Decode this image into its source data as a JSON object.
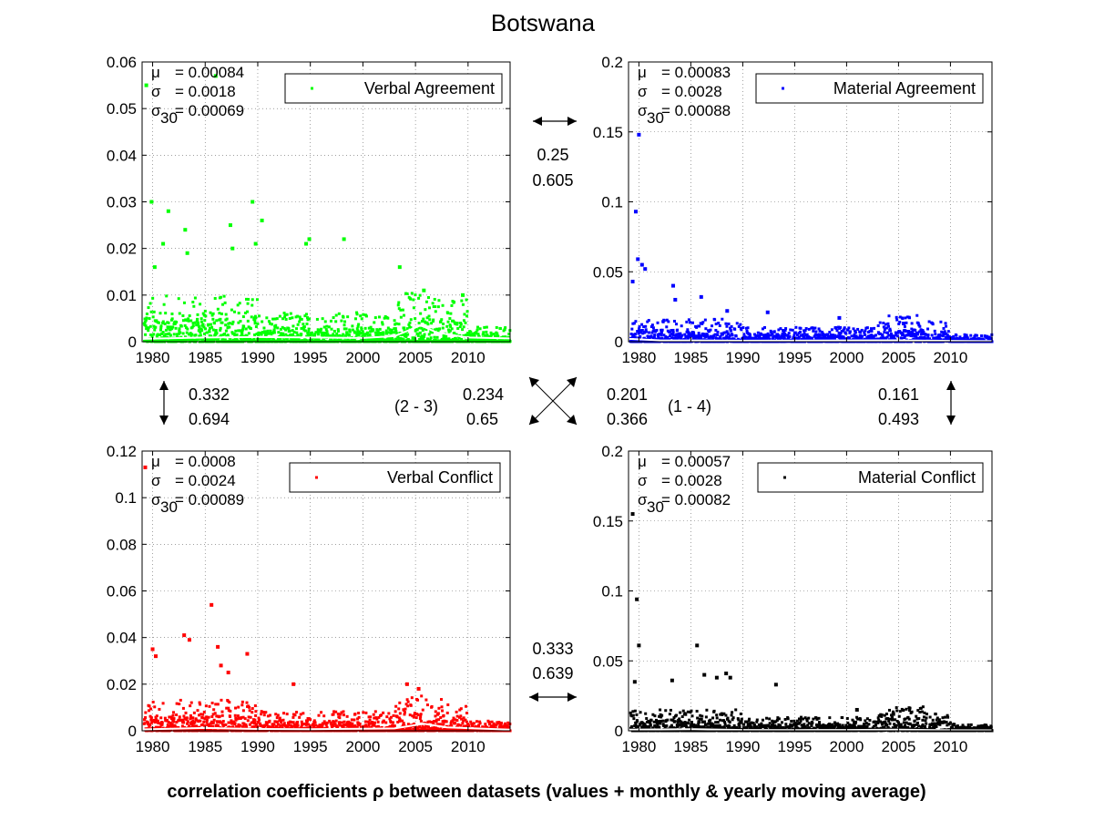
{
  "title": "Botswana",
  "caption": "correlation coefficients ρ between datasets (values + monthly & yearly moving average)",
  "colors": {
    "verbal_agreement": "#00ff00",
    "material_agreement": "#0000ff",
    "verbal_conflict": "#ff0000",
    "material_conflict": "#000000",
    "moving_average": "#ffffff"
  },
  "correlations": {
    "top_horizontal": {
      "values": [
        "0.25",
        "0.605"
      ]
    },
    "left_vertical": {
      "values": [
        "0.332",
        "0.694"
      ]
    },
    "right_vertical": {
      "values": [
        "0.161",
        "0.493"
      ]
    },
    "diag_2_3": {
      "label": "(2 - 3)",
      "values": [
        "0.234",
        "0.65"
      ]
    },
    "diag_1_4": {
      "label": "(1 - 4)",
      "values": [
        "0.201",
        "0.366"
      ]
    },
    "bottom_horizontal": {
      "values": [
        "0.333",
        "0.639"
      ]
    }
  },
  "chart_data": [
    {
      "type": "scatter",
      "name": "Verbal Agreement",
      "color": "#00ff00",
      "stats": {
        "mu": "= 0.00084",
        "sigma": "= 0.0018",
        "sigma30": "= 0.00069"
      },
      "xlim": [
        1979,
        2014
      ],
      "ylim": [
        0,
        0.06
      ],
      "xticks": [
        "1980",
        "1985",
        "1990",
        "1995",
        "2000",
        "2005",
        "2010"
      ],
      "yticks": [
        "0",
        "0.01",
        "0.02",
        "0.03",
        "0.04",
        "0.05",
        "0.06"
      ],
      "grid": true,
      "legend_position": "top-right",
      "typical_max": 0.009,
      "outliers": [
        [
          1979.4,
          0.055
        ],
        [
          1979.9,
          0.03
        ],
        [
          1980.2,
          0.016
        ],
        [
          1981.0,
          0.021
        ],
        [
          1981.5,
          0.028
        ],
        [
          1983.1,
          0.024
        ],
        [
          1983.3,
          0.019
        ],
        [
          1986.0,
          0.057
        ],
        [
          1987.4,
          0.025
        ],
        [
          1987.6,
          0.02
        ],
        [
          1989.5,
          0.03
        ],
        [
          1989.8,
          0.021
        ],
        [
          1990.4,
          0.026
        ],
        [
          1994.6,
          0.021
        ],
        [
          1994.9,
          0.022
        ],
        [
          1998.2,
          0.022
        ],
        [
          2003.5,
          0.016
        ],
        [
          2005.8,
          0.011
        ],
        [
          2009.5,
          0.01
        ]
      ],
      "moving_average": [
        [
          1979,
          0.0006
        ],
        [
          1985,
          0.0009
        ],
        [
          1990,
          0.001
        ],
        [
          1995,
          0.0009
        ],
        [
          2000,
          0.0008
        ],
        [
          2003,
          0.0012
        ],
        [
          2005.5,
          0.0035
        ],
        [
          2007,
          0.002
        ],
        [
          2010,
          0.0009
        ],
        [
          2014,
          0.0007
        ]
      ]
    },
    {
      "type": "scatter",
      "name": "Material Agreement",
      "color": "#0000ff",
      "stats": {
        "mu": "= 0.00083",
        "sigma": "= 0.0028",
        "sigma30": "= 0.00088"
      },
      "xlim": [
        1979,
        2014
      ],
      "ylim": [
        0,
        0.2
      ],
      "xticks": [
        "1980",
        "1985",
        "1990",
        "1995",
        "2000",
        "2005",
        "2010"
      ],
      "yticks": [
        "0",
        "0.05",
        "0.1",
        "0.15",
        "0.2"
      ],
      "grid": true,
      "legend_position": "top-right",
      "typical_max": 0.015,
      "outliers": [
        [
          1979.4,
          0.043
        ],
        [
          1979.7,
          0.093
        ],
        [
          1980.0,
          0.148
        ],
        [
          1979.9,
          0.059
        ],
        [
          1980.3,
          0.055
        ],
        [
          1980.6,
          0.052
        ],
        [
          1983.3,
          0.04
        ],
        [
          1983.5,
          0.03
        ],
        [
          1986.0,
          0.032
        ],
        [
          1988.5,
          0.022
        ],
        [
          1992.4,
          0.021
        ],
        [
          1999.3,
          0.017
        ],
        [
          2005.5,
          0.013
        ]
      ],
      "moving_average": [
        [
          1979,
          0.002
        ],
        [
          1982,
          0.001
        ],
        [
          1990,
          0.0007
        ],
        [
          2000,
          0.0009
        ],
        [
          2005,
          0.001
        ],
        [
          2010,
          0.0006
        ],
        [
          2014,
          0.0004
        ]
      ]
    },
    {
      "type": "scatter",
      "name": "Verbal Conflict",
      "color": "#ff0000",
      "stats": {
        "mu": "= 0.0008",
        "sigma": "= 0.0024",
        "sigma30": "= 0.00089"
      },
      "xlim": [
        1979,
        2014
      ],
      "ylim": [
        0,
        0.12
      ],
      "xticks": [
        "1980",
        "1985",
        "1990",
        "1995",
        "2000",
        "2005",
        "2010"
      ],
      "yticks": [
        "0",
        "0.02",
        "0.04",
        "0.06",
        "0.08",
        "0.1",
        "0.12"
      ],
      "grid": true,
      "legend_position": "top-right",
      "typical_max": 0.012,
      "outliers": [
        [
          1979.3,
          0.113
        ],
        [
          1980.0,
          0.035
        ],
        [
          1980.3,
          0.032
        ],
        [
          1983.0,
          0.041
        ],
        [
          1983.5,
          0.039
        ],
        [
          1985.6,
          0.054
        ],
        [
          1986.2,
          0.036
        ],
        [
          1986.5,
          0.028
        ],
        [
          1987.2,
          0.025
        ],
        [
          1989.0,
          0.033
        ],
        [
          1993.4,
          0.02
        ],
        [
          2004.2,
          0.02
        ],
        [
          2005.3,
          0.018
        ]
      ],
      "moving_average": [
        [
          1979,
          0.0006
        ],
        [
          1985,
          0.0012
        ],
        [
          1990,
          0.0008
        ],
        [
          1995,
          0.0007
        ],
        [
          2000,
          0.0009
        ],
        [
          2003,
          0.001
        ],
        [
          2005.8,
          0.003
        ],
        [
          2008,
          0.0015
        ],
        [
          2014,
          0.0005
        ]
      ]
    },
    {
      "type": "scatter",
      "name": "Material Conflict",
      "color": "#000000",
      "stats": {
        "mu": "= 0.00057",
        "sigma": "= 0.0028",
        "sigma30": "= 0.00082"
      },
      "xlim": [
        1979,
        2014
      ],
      "ylim": [
        0,
        0.2
      ],
      "xticks": [
        "1980",
        "1985",
        "1990",
        "1995",
        "2000",
        "2005",
        "2010"
      ],
      "yticks": [
        "0",
        "0.05",
        "0.1",
        "0.15",
        "0.2"
      ],
      "grid": true,
      "legend_position": "top-right",
      "typical_max": 0.014,
      "outliers": [
        [
          1979.4,
          0.155
        ],
        [
          1979.8,
          0.094
        ],
        [
          1980.0,
          0.061
        ],
        [
          1979.6,
          0.035
        ],
        [
          1983.2,
          0.036
        ],
        [
          1985.6,
          0.061
        ],
        [
          1986.3,
          0.04
        ],
        [
          1987.5,
          0.038
        ],
        [
          1988.4,
          0.041
        ],
        [
          1988.8,
          0.038
        ],
        [
          1993.2,
          0.033
        ],
        [
          2001.0,
          0.015
        ],
        [
          2004.5,
          0.012
        ]
      ],
      "moving_average": [
        [
          1979,
          0.0008
        ],
        [
          1985,
          0.0012
        ],
        [
          1990,
          0.0006
        ],
        [
          1995,
          0.0005
        ],
        [
          2000,
          0.0006
        ],
        [
          2005,
          0.0008
        ],
        [
          2010,
          0.0004
        ],
        [
          2014,
          0.0003
        ]
      ]
    }
  ]
}
